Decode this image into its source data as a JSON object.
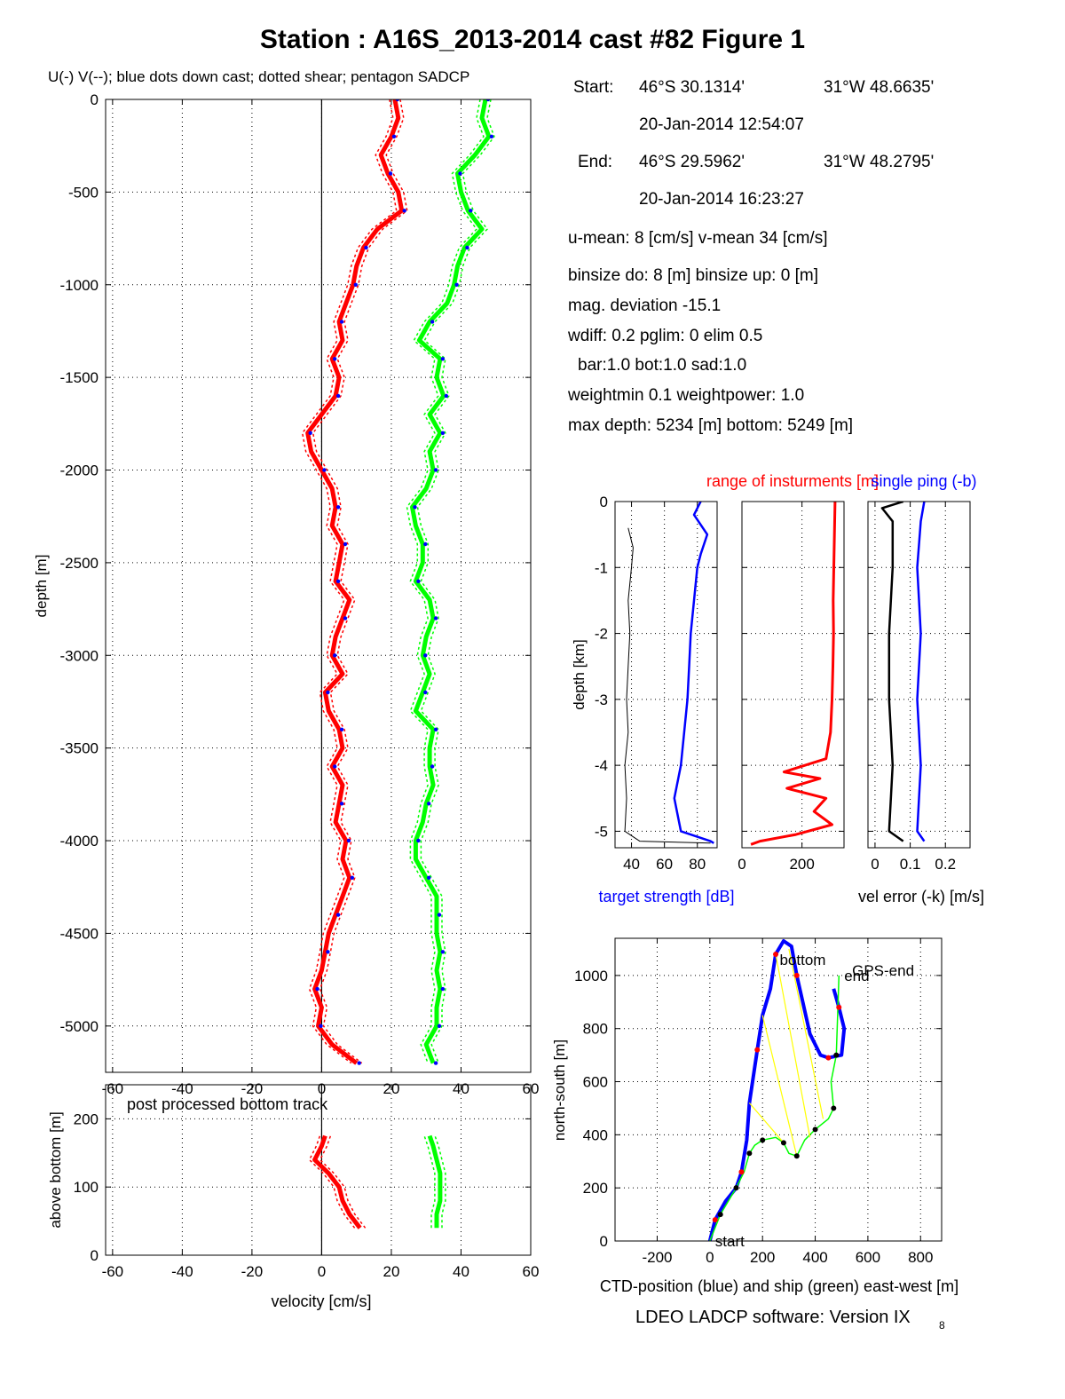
{
  "page": {
    "title": "Station : A16S_2013-2014 cast #82  Figure 1",
    "footer": "LDEO LADCP software: Version IX",
    "footer_sub": "8"
  },
  "info": {
    "start_label": "Start:",
    "start_lat": "46°S 30.1314'",
    "start_lon": "31°W 48.6635'",
    "start_time": "20-Jan-2014 12:54:07",
    "end_label": "End:",
    "end_lat": "46°S 29.5962'",
    "end_lon": "31°W 48.2795'",
    "end_time": "20-Jan-2014 16:23:27",
    "means": "u-mean:   8 [cm/s]    v-mean  34 [cm/s]",
    "binsize": "binsize do:  8 [m]  binsize up:   0 [m]",
    "magdev": "mag. deviation -15.1",
    "wdiff": "wdiff: 0.2  pglim: 0  elim 0.5",
    "bar": "bar:1.0 bot:1.0 sad:1.0",
    "weight": "weightmin 0.1  weightpower: 1.0",
    "depth": "max depth: 5234 [m]   bottom: 5249 [m]"
  },
  "chart_data": [
    {
      "id": "velocity-profile",
      "type": "line",
      "title": "U(-) V(--); blue dots down cast; dotted shear; pentagon SADCP",
      "xlabel": "",
      "ylabel": "depth [m]",
      "xlim": [
        -62,
        60
      ],
      "ylim": [
        -5250,
        0
      ],
      "xticks": [
        -60,
        -40,
        -20,
        0,
        20,
        40,
        60
      ],
      "yticks": [
        0,
        -500,
        -1000,
        -1500,
        -2000,
        -2500,
        -3000,
        -3500,
        -4000,
        -4500,
        -5000
      ],
      "grid": true,
      "colors": {
        "U": "#ff0000",
        "V": "#00ff00",
        "downcast": "#0000ff"
      },
      "series": [
        {
          "name": "U",
          "color": "#ff0000",
          "depth": [
            0,
            -100,
            -200,
            -300,
            -400,
            -500,
            -600,
            -700,
            -800,
            -900,
            -1000,
            -1100,
            -1200,
            -1300,
            -1400,
            -1500,
            -1600,
            -1700,
            -1800,
            -1900,
            -2000,
            -2100,
            -2200,
            -2300,
            -2400,
            -2500,
            -2600,
            -2700,
            -2800,
            -2900,
            -3000,
            -3100,
            -3200,
            -3300,
            -3400,
            -3500,
            -3600,
            -3700,
            -3800,
            -3900,
            -4000,
            -4100,
            -4200,
            -4300,
            -4400,
            -4500,
            -4600,
            -4700,
            -4800,
            -4900,
            -5000,
            -5100,
            -5200
          ],
          "values": [
            21,
            22,
            20,
            17,
            19,
            22,
            23,
            16,
            12,
            10,
            9,
            7,
            5,
            6,
            3,
            5,
            4,
            0,
            -4,
            -3,
            0,
            3,
            4,
            3,
            6,
            5,
            4,
            8,
            6,
            4,
            3,
            6,
            1,
            2,
            5,
            6,
            3,
            6,
            5,
            4,
            7,
            6,
            8,
            6,
            4,
            2,
            1,
            0,
            -2,
            0,
            -1,
            3,
            10
          ]
        },
        {
          "name": "V",
          "color": "#00ff00",
          "depth": [
            0,
            -100,
            -200,
            -300,
            -400,
            -500,
            -600,
            -700,
            -800,
            -900,
            -1000,
            -1100,
            -1200,
            -1300,
            -1400,
            -1500,
            -1600,
            -1700,
            -1800,
            -1900,
            -2000,
            -2100,
            -2200,
            -2300,
            -2400,
            -2500,
            -2600,
            -2700,
            -2800,
            -2900,
            -3000,
            -3100,
            -3200,
            -3300,
            -3400,
            -3500,
            -3600,
            -3700,
            -3800,
            -3900,
            -4000,
            -4100,
            -4200,
            -4300,
            -4400,
            -4500,
            -4600,
            -4700,
            -4800,
            -4900,
            -5000,
            -5100,
            -5200
          ],
          "values": [
            47,
            46,
            48,
            44,
            39,
            40,
            42,
            46,
            41,
            39,
            38,
            36,
            31,
            28,
            34,
            33,
            35,
            31,
            34,
            31,
            32,
            30,
            26,
            27,
            29,
            29,
            27,
            31,
            32,
            30,
            29,
            31,
            29,
            27,
            32,
            31,
            31,
            32,
            30,
            29,
            27,
            27,
            30,
            33,
            33,
            33,
            34,
            33,
            34,
            33,
            33,
            30,
            32
          ]
        }
      ]
    },
    {
      "id": "bottom-track",
      "type": "line",
      "title": "post processed bottom track",
      "xlabel": "velocity [cm/s]",
      "ylabel": "above bottom [m]",
      "xlim": [
        -62,
        60
      ],
      "ylim": [
        0,
        250
      ],
      "xticks": [
        -60,
        -40,
        -20,
        0,
        20,
        40,
        60
      ],
      "yticks": [
        0,
        100,
        200
      ],
      "grid": true,
      "series": [
        {
          "name": "U",
          "color": "#ff0000",
          "height": [
            40,
            60,
            80,
            100,
            120,
            140,
            160,
            175
          ],
          "values": [
            11,
            8,
            6,
            5,
            2,
            -2,
            0,
            1
          ]
        },
        {
          "name": "V",
          "color": "#00ff00",
          "height": [
            40,
            60,
            80,
            100,
            120,
            140,
            160,
            175
          ],
          "values": [
            33,
            33,
            34,
            34,
            34,
            33,
            32,
            31
          ]
        }
      ]
    },
    {
      "id": "target-strength",
      "type": "line",
      "title": "",
      "xlabel": "target strength [dB]",
      "ylabel": "depth [km]",
      "xlim": [
        30,
        92
      ],
      "ylim": [
        -5.25,
        0
      ],
      "xticks": [
        40,
        60,
        80
      ],
      "yticks": [
        0,
        -1,
        -2,
        -3,
        -4,
        -5
      ],
      "grid": true,
      "series": [
        {
          "color": "#0000ff",
          "depth": [
            0,
            -0.2,
            -0.5,
            -0.8,
            -1,
            -1.5,
            -2,
            -2.5,
            -3,
            -3.5,
            -4,
            -4.5,
            -5,
            -5.15,
            -5.18
          ],
          "values": [
            82,
            78,
            86,
            82,
            80,
            78,
            76,
            75,
            74,
            72,
            70,
            66,
            70,
            88,
            90
          ]
        },
        {
          "color": "#000000",
          "depth": [
            -0.4,
            -0.7,
            -1,
            -1.5,
            -2,
            -2.5,
            -3,
            -3.5,
            -4,
            -4.5,
            -5,
            -5.15,
            -5.18
          ],
          "values": [
            38,
            41,
            40,
            38,
            39,
            38,
            37,
            38,
            36,
            37,
            36,
            45,
            88
          ]
        }
      ]
    },
    {
      "id": "instrument-range",
      "type": "line",
      "title": "range of insturments [m]",
      "xlabel": "",
      "ylabel": "",
      "xlim": [
        0,
        340
      ],
      "ylim": [
        -5.25,
        0
      ],
      "xticks": [
        0,
        200
      ],
      "yticks": [
        0,
        -1,
        -2,
        -3,
        -4,
        -5
      ],
      "grid": true,
      "series": [
        {
          "color": "#ff0000",
          "depth": [
            0,
            -0.5,
            -1,
            -1.5,
            -2,
            -2.5,
            -3,
            -3.5,
            -3.9,
            -4.1,
            -4.2,
            -4.35,
            -4.5,
            -4.7,
            -4.9,
            -5.05,
            -5.15,
            -5.2
          ],
          "values": [
            310,
            308,
            306,
            304,
            305,
            303,
            300,
            295,
            280,
            140,
            260,
            150,
            280,
            240,
            300,
            180,
            60,
            30
          ]
        }
      ]
    },
    {
      "id": "vel-error",
      "type": "line",
      "title": "single ping (-b)",
      "xlabel": "vel error (-k) [m/s]",
      "ylabel": "",
      "xlim": [
        -0.02,
        0.27
      ],
      "ylim": [
        -5.25,
        0
      ],
      "xticks": [
        0,
        0.1,
        0.2
      ],
      "yticks": [
        0,
        -1,
        -2,
        -3,
        -4,
        -5
      ],
      "grid": true,
      "series": [
        {
          "color": "#000000",
          "depth": [
            0,
            -0.1,
            -0.3,
            -1,
            -2,
            -3,
            -4,
            -5,
            -5.15
          ],
          "values": [
            0.08,
            0.02,
            0.05,
            0.05,
            0.04,
            0.04,
            0.05,
            0.04,
            0.08
          ]
        },
        {
          "color": "#0000ff",
          "depth": [
            0,
            -0.3,
            -1,
            -2,
            -3,
            -4,
            -5,
            -5.15
          ],
          "values": [
            0.14,
            0.13,
            0.12,
            0.13,
            0.12,
            0.13,
            0.12,
            0.14
          ]
        }
      ]
    },
    {
      "id": "position",
      "type": "line",
      "title": "",
      "xlabel": "CTD-position (blue) and ship (green) east-west [m]",
      "ylabel": "north-south [m]",
      "xlim": [
        -360,
        880
      ],
      "ylim": [
        0,
        1140
      ],
      "xticks": [
        -200,
        0,
        200,
        400,
        600,
        800
      ],
      "yticks": [
        0,
        200,
        400,
        600,
        800,
        1000
      ],
      "grid": true,
      "annotations": [
        "start",
        "bottom",
        "end",
        "GPS-end"
      ],
      "series": [
        {
          "name": "CTD",
          "color": "#0000ff",
          "x": [
            0,
            20,
            60,
            100,
            120,
            140,
            150,
            180,
            200,
            230,
            250,
            280,
            310,
            330,
            380,
            420,
            450,
            500,
            510,
            490,
            470
          ],
          "y": [
            0,
            80,
            150,
            200,
            260,
            380,
            520,
            720,
            850,
            950,
            1080,
            1130,
            1110,
            1000,
            780,
            700,
            690,
            700,
            800,
            880,
            950
          ]
        },
        {
          "name": "ship",
          "color": "#00ff00",
          "x": [
            0,
            40,
            70,
            100,
            130,
            150,
            170,
            200,
            250,
            280,
            300,
            330,
            360,
            400,
            450,
            470,
            460,
            480,
            490
          ],
          "y": [
            0,
            100,
            150,
            200,
            260,
            330,
            360,
            380,
            390,
            370,
            330,
            320,
            380,
            420,
            460,
            500,
            600,
            700,
            1000
          ]
        }
      ]
    }
  ]
}
